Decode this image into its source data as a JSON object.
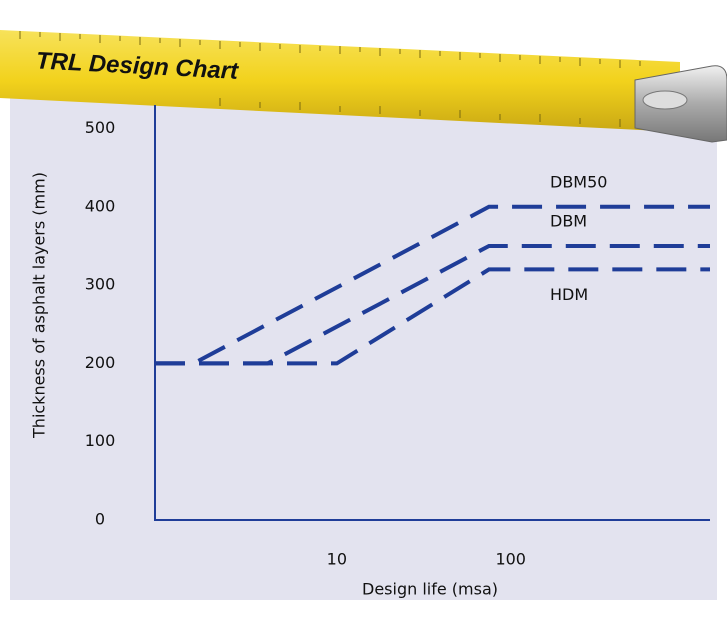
{
  "chart_data": {
    "type": "line",
    "title": "TRL Design Chart",
    "x_label": "Design life (msa)",
    "y_label": "Thickness of asphalt layers (mm)",
    "xscale": "log",
    "xlim": [
      0.9,
      1400
    ],
    "xticks": [
      10,
      100
    ],
    "ylim": [
      0,
      530
    ],
    "yticks": [
      0,
      100,
      200,
      300,
      400,
      500
    ],
    "grid": false,
    "series": [
      {
        "name": "DBM50",
        "color": "#1f3d98",
        "x": [
          0.9,
          1.5,
          75,
          1400
        ],
        "values": [
          200,
          200,
          400,
          400
        ]
      },
      {
        "name": "DBM",
        "color": "#1f3d98",
        "x": [
          0.9,
          4,
          75,
          1400
        ],
        "values": [
          200,
          200,
          350,
          350
        ]
      },
      {
        "name": "HDM",
        "color": "#1f3d98",
        "x": [
          0.9,
          10,
          75,
          1400
        ],
        "values": [
          200,
          200,
          320,
          320
        ]
      }
    ]
  }
}
